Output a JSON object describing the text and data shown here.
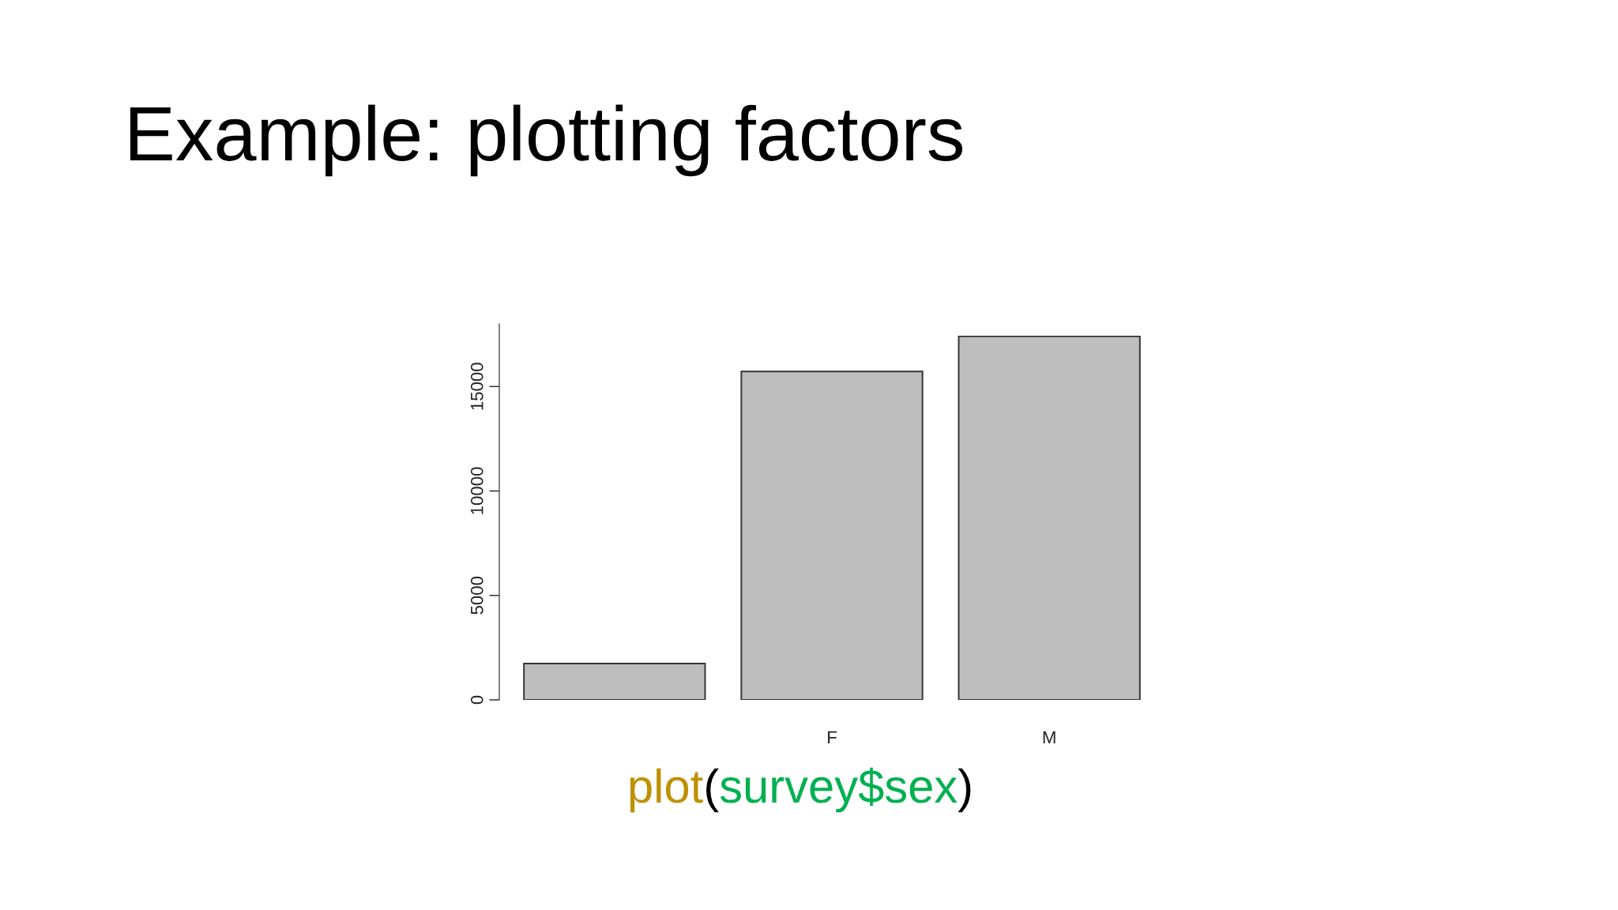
{
  "chart_data": {
    "type": "bar",
    "title": "Example: plotting factors",
    "categories": [
      null,
      "F",
      "M"
    ],
    "values": [
      1740,
      15720,
      17400
    ],
    "color": "#bebebe",
    "ylim": [
      0,
      18000
    ],
    "yticks": [
      0,
      5000,
      10000,
      15000
    ],
    "annotations": [
      "plot(survey$sex)"
    ],
    "grid": false
  }
}
